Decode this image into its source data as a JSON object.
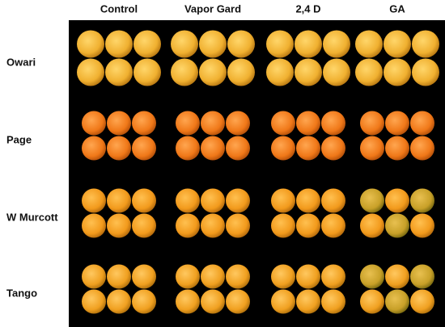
{
  "columns": [
    "Control",
    "Vapor Gard",
    "2,4 D",
    "GA"
  ],
  "rows": [
    "Owari",
    "Page",
    "W Murcott",
    "Tango"
  ]
}
